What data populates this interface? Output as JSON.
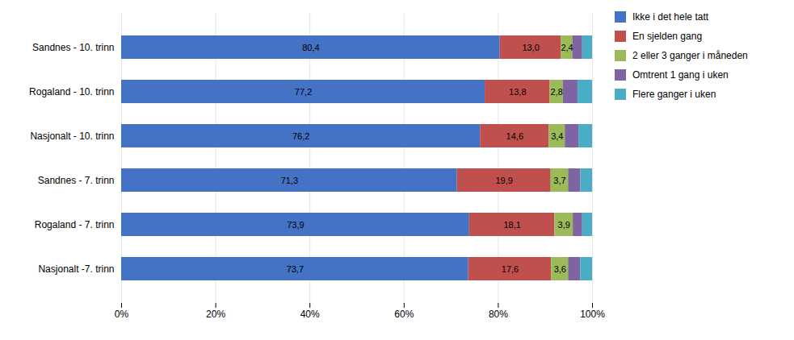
{
  "chart_data": {
    "type": "bar",
    "orientation": "horizontal",
    "stacked": true,
    "categories": [
      "Sandnes - 10. trinn",
      "Rogaland - 10. trinn",
      "Nasjonalt - 10. trinn",
      "Sandnes - 7. trinn",
      "Rogaland - 7. trinn",
      "Nasjonalt -7. trinn"
    ],
    "series": [
      {
        "name": "Ikke i det hele tatt",
        "color": "#4472C4",
        "values": [
          80.4,
          77.2,
          76.2,
          71.3,
          73.9,
          73.7
        ],
        "value_labels": [
          "80,4",
          "77,2",
          "76,2",
          "71,3",
          "73,9",
          "73,7"
        ]
      },
      {
        "name": "En sjelden gang",
        "color": "#C0504D",
        "values": [
          13.0,
          13.8,
          14.6,
          19.9,
          18.1,
          17.6
        ],
        "value_labels": [
          "13,0",
          "13,8",
          "14,6",
          "19,9",
          "18,1",
          "17,6"
        ]
      },
      {
        "name": "2 eller 3 ganger i måneden",
        "color": "#9BBB59",
        "values": [
          2.4,
          2.8,
          3.4,
          3.7,
          3.9,
          3.6
        ],
        "value_labels": [
          "2,4",
          "2,8",
          "3,4",
          "3,7",
          "3,9",
          "3,6"
        ]
      },
      {
        "name": "Omtrent 1 gang i uken",
        "color": "#8064A2",
        "values": [
          2.1,
          3.1,
          2.9,
          2.6,
          2.0,
          2.6
        ]
      },
      {
        "name": "Flere ganger i uken",
        "color": "#4BACC6",
        "values": [
          2.1,
          3.1,
          2.9,
          2.5,
          2.1,
          2.5
        ]
      }
    ],
    "xlim": [
      0,
      100
    ],
    "xticks": [
      {
        "value": 0,
        "label": "0%"
      },
      {
        "value": 20,
        "label": "20%"
      },
      {
        "value": 40,
        "label": "40%"
      },
      {
        "value": 60,
        "label": "60%"
      },
      {
        "value": 80,
        "label": "80%"
      },
      {
        "value": 100,
        "label": "100%"
      }
    ],
    "grid": true,
    "legend": "right",
    "data_labels": true
  }
}
